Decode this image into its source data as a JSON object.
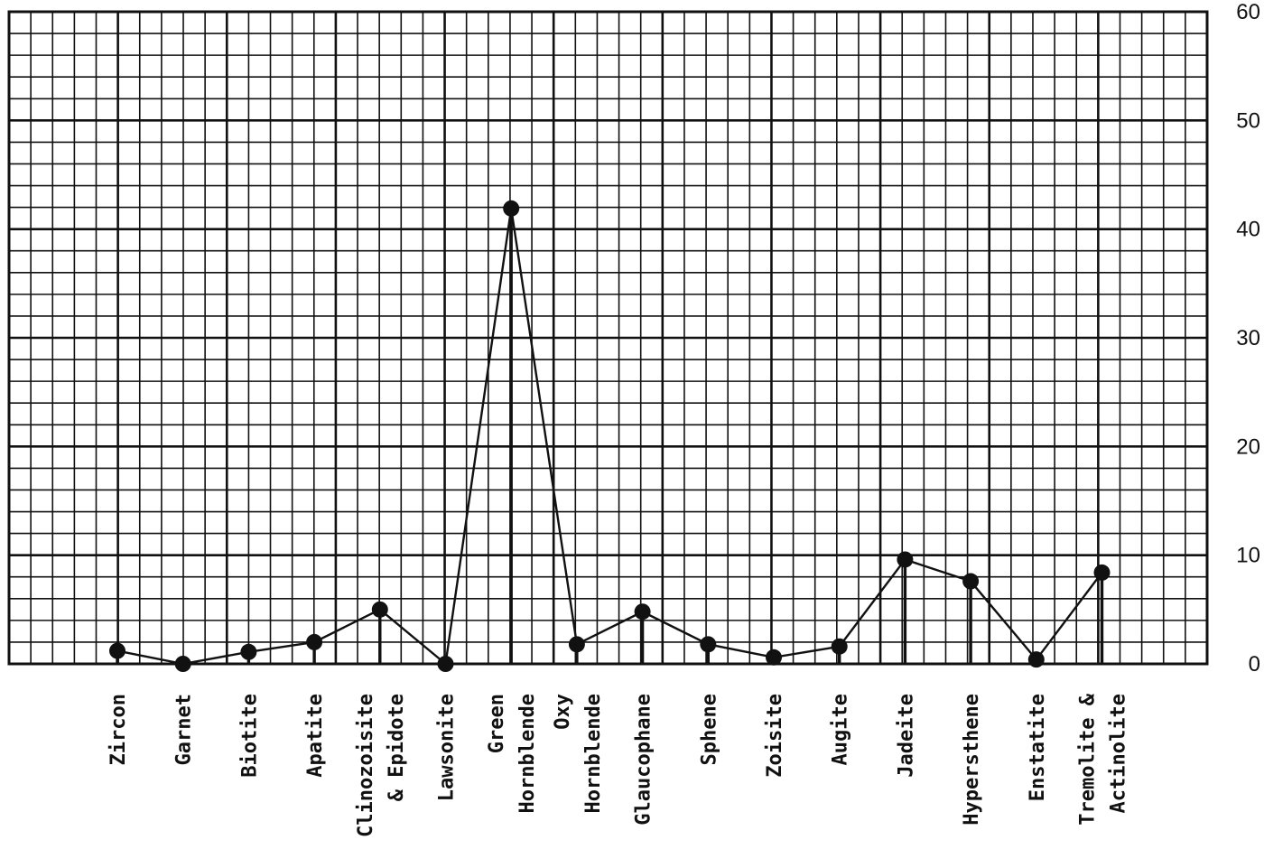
{
  "chart_data": {
    "type": "line",
    "title": "",
    "xlabel": "",
    "ylabel": "",
    "ylim": [
      0,
      60
    ],
    "yticks": [
      0,
      10,
      20,
      30,
      40,
      50,
      60
    ],
    "grid": true,
    "categories": [
      [
        "Zircon"
      ],
      [
        "Garnet"
      ],
      [
        "Biotite"
      ],
      [
        "Apatite"
      ],
      [
        "Clinozoisite",
        "& Epidote"
      ],
      [
        "Lawsonite"
      ],
      [
        "Green",
        "Hornblende"
      ],
      [
        "Oxy",
        "Hornblende"
      ],
      [
        "Glaucophane"
      ],
      [
        "Sphene"
      ],
      [
        "Zoisite"
      ],
      [
        "Augite"
      ],
      [
        "Jadeite"
      ],
      [
        "Hypersthene"
      ],
      [
        "Enstatite"
      ],
      [
        "Tremolite &",
        "Actinolite"
      ]
    ],
    "series": [
      {
        "values": [
          1.2,
          0,
          1.1,
          2.0,
          5.0,
          0,
          41.9,
          1.8,
          4.8,
          1.8,
          0.6,
          1.6,
          9.6,
          7.6,
          0.4,
          8.4
        ]
      }
    ]
  }
}
